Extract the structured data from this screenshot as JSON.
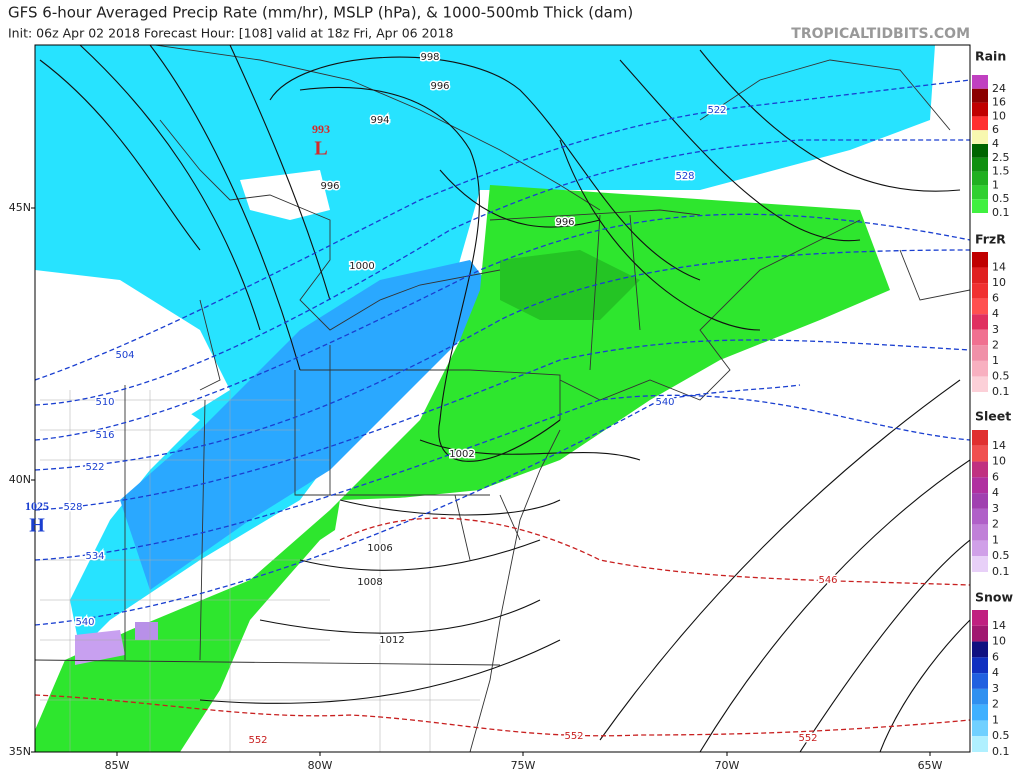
{
  "header": {
    "title": "GFS 6-hour Averaged Precip Rate (mm/hr), MSLP (hPa), & 1000-500mb Thick (dam)",
    "subtitle": "Init: 06z Apr 02 2018   Forecast Hour: [108]   valid at 18z Fri, Apr 06 2018",
    "site": "TROPICALTIDBITS.COM"
  },
  "map": {
    "lat_labels": [
      "45N",
      "40N",
      "35N"
    ],
    "lon_labels": [
      "85W",
      "80W",
      "75W",
      "70W",
      "65W"
    ],
    "isobar_labels": [
      "998",
      "996",
      "994",
      "996",
      "1000",
      "996",
      "1002",
      "1006",
      "1008",
      "1012"
    ],
    "thickness_labels": [
      "504",
      "510",
      "516",
      "522",
      "528",
      "534",
      "540",
      "522",
      "528",
      "540",
      "546",
      "552",
      "552",
      "552"
    ],
    "pressure_centers": [
      {
        "value": "993",
        "symbol": "L"
      },
      {
        "value": "1025",
        "symbol": "H"
      }
    ]
  },
  "legend": [
    {
      "title": "Rain",
      "labels": [
        "24",
        "16",
        "10",
        "6",
        "4",
        "2.5",
        "1.5",
        "1",
        "0.5",
        "0.1"
      ]
    },
    {
      "title": "FrzR",
      "labels": [
        "14",
        "10",
        "6",
        "4",
        "3",
        "2",
        "1",
        "0.5",
        "0.1"
      ]
    },
    {
      "title": "Sleet",
      "labels": [
        "14",
        "10",
        "6",
        "4",
        "3",
        "2",
        "1",
        "0.5",
        "0.1"
      ]
    },
    {
      "title": "Snow",
      "labels": [
        "14",
        "10",
        "6",
        "4",
        "3",
        "2",
        "1",
        "0.5",
        "0.1"
      ]
    }
  ]
}
